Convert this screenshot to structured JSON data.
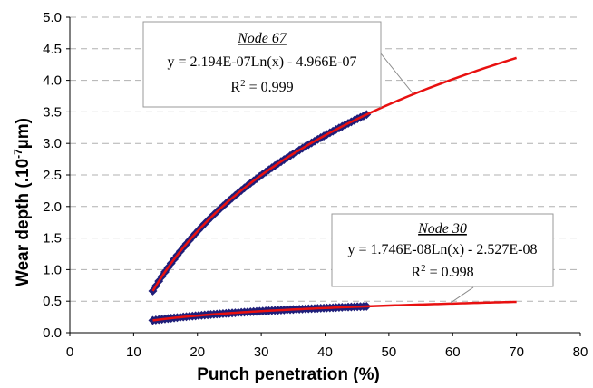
{
  "chart_data": {
    "type": "scatter",
    "xlabel": "Punch penetration (%)",
    "ylabel_main": "Wear depth (.10",
    "ylabel_sup": "-7",
    "ylabel_tail": "µm)",
    "xlim": [
      0,
      80
    ],
    "ylim": [
      0,
      5
    ],
    "xticks": [
      "0",
      "10",
      "20",
      "30",
      "40",
      "50",
      "60",
      "70",
      "80"
    ],
    "yticks": [
      "0.0",
      "0.5",
      "1.0",
      "1.5",
      "2.0",
      "2.5",
      "3.0",
      "3.5",
      "4.0",
      "4.5",
      "5.0"
    ],
    "grid_y": true,
    "colors": {
      "markers": "#1f1f7a",
      "fit": "#e81010",
      "grid": "#b0b0b0"
    },
    "series": [
      {
        "name": "Node 67",
        "data_x_range": [
          13,
          46.5
        ],
        "fit": {
          "a": 2.194,
          "b": -4.966,
          "x_range": [
            13,
            70
          ]
        },
        "annotation": {
          "title": "Node 67",
          "equation": "y = 2.194E-07Ln(x) - 4.966E-07",
          "r2_label": "R",
          "r2_sup": "2",
          "r2_value": " = 0.999"
        }
      },
      {
        "name": "Node 30",
        "data_x_range": [
          13,
          46.5
        ],
        "fit": {
          "a": 0.1746,
          "b": -0.2527,
          "x_range": [
            13,
            70
          ]
        },
        "annotation": {
          "title": "Node 30",
          "equation": "y = 1.746E-08Ln(x) - 2.527E-08",
          "r2_label": "R",
          "r2_sup": "2",
          "r2_value": " = 0.998"
        }
      }
    ]
  }
}
